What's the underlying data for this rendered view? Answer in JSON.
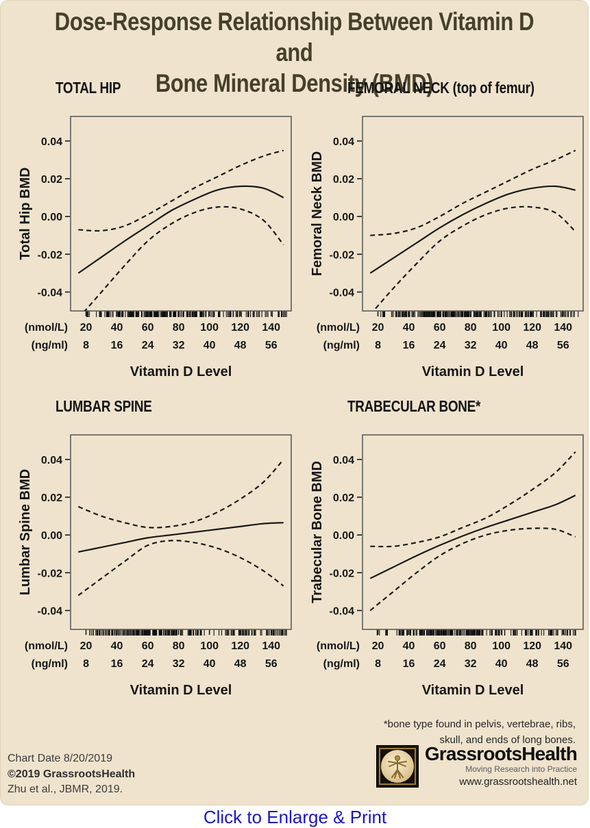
{
  "page": {
    "link_text": "Click to Enlarge & Print"
  },
  "title": {
    "line1": "Dose-Response Relationship Between Vitamin D and",
    "line2": "Bone Mineral Density (BMD)"
  },
  "footer": {
    "line1": "Chart Date 8/20/2019",
    "line2": "©2019 GrassrootsHealth",
    "line3": "Zhu et al., JBMR, 2019."
  },
  "footnote": {
    "line1": "*bone type found in pelvis, vertebrae, ribs,",
    "line2": "skull, and ends of long bones."
  },
  "logo": {
    "name": "GrassrootsHealth",
    "tagline": "Moving Research into Practice",
    "url": "www.grassrootshealth.net"
  },
  "colors": {
    "card_bg": "#efe3cd",
    "title_ink": "#46402a",
    "ink": "#191919",
    "box_stroke": "#5c5c5c",
    "link_blue": "#1b16c4",
    "logo_gold": "#9b7d3a"
  },
  "chart_data": [
    {
      "type": "line",
      "heading": "TOTAL HIP",
      "ylabel": "Total Hip BMD",
      "xlabel": "Vitamin D Level",
      "x_unit_labels": [
        "(nmol/L)",
        "(ng/ml)"
      ],
      "x_ticks_nmol": [
        20,
        40,
        60,
        80,
        100,
        120,
        140
      ],
      "x_ticks_ngml": [
        8,
        16,
        24,
        32,
        40,
        48,
        56
      ],
      "y_ticks": [
        0.04,
        0.02,
        0.0,
        -0.02,
        -0.04
      ],
      "xlim": [
        10,
        153
      ],
      "ylim": [
        -0.05,
        0.053
      ],
      "grid": false,
      "legend": "none",
      "x": [
        15,
        30,
        45,
        60,
        75,
        90,
        105,
        120,
        135,
        148
      ],
      "series": [
        {
          "name": "estimate",
          "style": "solid",
          "y": [
            -0.03,
            -0.0215,
            -0.013,
            -0.005,
            0.003,
            0.009,
            0.014,
            0.016,
            0.015,
            0.01
          ]
        },
        {
          "name": "upper 95% CI",
          "style": "dashed",
          "y": [
            -0.007,
            -0.0075,
            -0.005,
            0.001,
            0.008,
            0.015,
            0.021,
            0.027,
            0.032,
            0.035
          ]
        },
        {
          "name": "lower 95% CI",
          "style": "dashed",
          "y": [
            -0.054,
            -0.04,
            -0.026,
            -0.013,
            -0.004,
            0.002,
            0.005,
            0.004,
            -0.002,
            -0.015
          ]
        }
      ],
      "rug": {
        "seed": 11,
        "n": 250
      }
    },
    {
      "type": "line",
      "heading": "FEMORAL NECK (top of femur)",
      "ylabel": "Femoral Neck BMD",
      "xlabel": "Vitamin D Level",
      "x_unit_labels": [
        "(nmol/L)",
        "(ng/ml)"
      ],
      "x_ticks_nmol": [
        20,
        40,
        60,
        80,
        100,
        120,
        140
      ],
      "x_ticks_ngml": [
        8,
        16,
        24,
        32,
        40,
        48,
        56
      ],
      "y_ticks": [
        0.04,
        0.02,
        0.0,
        -0.02,
        -0.04
      ],
      "xlim": [
        10,
        153
      ],
      "ylim": [
        -0.05,
        0.053
      ],
      "grid": false,
      "legend": "none",
      "x": [
        15,
        30,
        45,
        60,
        75,
        90,
        105,
        120,
        135,
        148
      ],
      "series": [
        {
          "name": "estimate",
          "style": "solid",
          "y": [
            -0.03,
            -0.022,
            -0.014,
            -0.006,
            0.001,
            0.007,
            0.012,
            0.015,
            0.016,
            0.014
          ]
        },
        {
          "name": "upper 95% CI",
          "style": "dashed",
          "y": [
            -0.01,
            -0.009,
            -0.006,
            0.0,
            0.007,
            0.013,
            0.019,
            0.025,
            0.03,
            0.035
          ]
        },
        {
          "name": "lower 95% CI",
          "style": "dashed",
          "y": [
            -0.052,
            -0.038,
            -0.025,
            -0.013,
            -0.005,
            0.001,
            0.0045,
            0.005,
            0.002,
            -0.008
          ]
        }
      ],
      "rug": {
        "seed": 22,
        "n": 250
      }
    },
    {
      "type": "line",
      "heading": "LUMBAR SPINE",
      "ylabel": "Lumbar Spine BMD",
      "xlabel": "Vitamin D Level",
      "x_unit_labels": [
        "(nmol/L)",
        "(ng/ml)"
      ],
      "x_ticks_nmol": [
        20,
        40,
        60,
        80,
        100,
        120,
        140
      ],
      "x_ticks_ngml": [
        8,
        16,
        24,
        32,
        40,
        48,
        56
      ],
      "y_ticks": [
        0.04,
        0.02,
        0.0,
        -0.02,
        -0.04
      ],
      "xlim": [
        10,
        153
      ],
      "ylim": [
        -0.05,
        0.053
      ],
      "grid": false,
      "legend": "none",
      "x": [
        15,
        30,
        45,
        60,
        75,
        90,
        105,
        120,
        135,
        148
      ],
      "series": [
        {
          "name": "estimate",
          "style": "solid",
          "y": [
            -0.009,
            -0.0065,
            -0.004,
            -0.0015,
            0.0,
            0.0015,
            0.003,
            0.0045,
            0.006,
            0.0065
          ]
        },
        {
          "name": "upper 95% CI",
          "style": "dashed",
          "y": [
            0.015,
            0.01,
            0.0065,
            0.004,
            0.0045,
            0.007,
            0.012,
            0.019,
            0.028,
            0.04
          ]
        },
        {
          "name": "lower 95% CI",
          "style": "dashed",
          "y": [
            -0.032,
            -0.023,
            -0.014,
            -0.0055,
            -0.003,
            -0.004,
            -0.007,
            -0.012,
            -0.019,
            -0.027
          ]
        }
      ],
      "rug": {
        "seed": 33,
        "n": 250
      }
    },
    {
      "type": "line",
      "heading": "TRABECULAR BONE*",
      "ylabel": "Trabecular Bone BMD",
      "xlabel": "Vitamin D Level",
      "x_unit_labels": [
        "(nmol/L)",
        "(ng/ml)"
      ],
      "x_ticks_nmol": [
        20,
        40,
        60,
        80,
        100,
        120,
        140
      ],
      "x_ticks_ngml": [
        8,
        16,
        24,
        32,
        40,
        48,
        56
      ],
      "y_ticks": [
        0.04,
        0.02,
        0.0,
        -0.02,
        -0.04
      ],
      "xlim": [
        10,
        153
      ],
      "ylim": [
        -0.05,
        0.053
      ],
      "grid": false,
      "legend": "none",
      "x": [
        15,
        30,
        45,
        60,
        75,
        90,
        105,
        120,
        135,
        148
      ],
      "series": [
        {
          "name": "estimate",
          "style": "solid",
          "y": [
            -0.023,
            -0.017,
            -0.011,
            -0.0055,
            -0.0005,
            0.004,
            0.008,
            0.012,
            0.016,
            0.021
          ]
        },
        {
          "name": "upper 95% CI",
          "style": "dashed",
          "y": [
            -0.006,
            -0.006,
            -0.004,
            -0.001,
            0.004,
            0.009,
            0.016,
            0.024,
            0.033,
            0.044
          ]
        },
        {
          "name": "lower 95% CI",
          "style": "dashed",
          "y": [
            -0.04,
            -0.03,
            -0.02,
            -0.011,
            -0.0045,
            0.0,
            0.0025,
            0.0035,
            0.003,
            -0.001
          ]
        }
      ],
      "rug": {
        "seed": 44,
        "n": 250
      }
    }
  ]
}
